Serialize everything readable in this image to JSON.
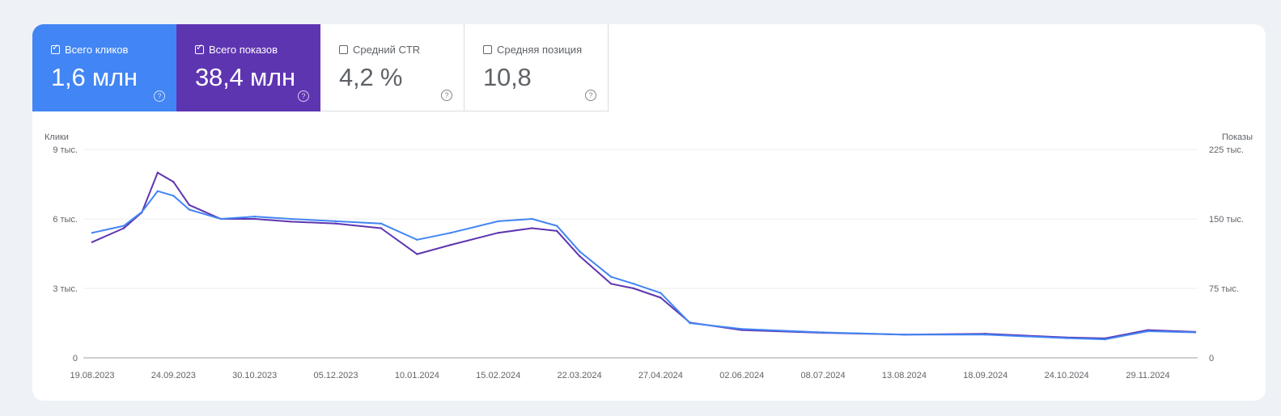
{
  "metrics": [
    {
      "label": "Всего кликов",
      "value": "1,6 млн",
      "checked": true,
      "color": "#4285f4"
    },
    {
      "label": "Всего показов",
      "value": "38,4 млн",
      "checked": true,
      "color": "#5e35b1"
    },
    {
      "label": "Средний CTR",
      "value": "4,2 %",
      "checked": false
    },
    {
      "label": "Средняя позиция",
      "value": "10,8",
      "checked": false
    }
  ],
  "help_glyph": "?",
  "chart_data": {
    "type": "line",
    "ylabel": "Клики",
    "y2label": "Показы",
    "ylim": [
      0,
      9000
    ],
    "y2lim": [
      0,
      225000
    ],
    "yticks": [
      "0",
      "3 тыс.",
      "6 тыс.",
      "9 тыс."
    ],
    "y2ticks": [
      "0",
      "75 тыс.",
      "150 тыс.",
      "225 тыс."
    ],
    "xticks": [
      "19.08.2023",
      "24.09.2023",
      "30.10.2023",
      "05.12.2023",
      "10.01.2024",
      "15.02.2024",
      "22.03.2024",
      "27.04.2024",
      "02.06.2024",
      "08.07.2024",
      "13.08.2024",
      "18.09.2024",
      "24.10.2024",
      "29.11.2024"
    ],
    "x": [
      "19.08.2023",
      "02.09.2023",
      "10.09.2023",
      "17.09.2023",
      "24.09.2023",
      "01.10.2023",
      "15.10.2023",
      "30.10.2023",
      "15.11.2023",
      "05.12.2023",
      "25.12.2023",
      "10.01.2024",
      "25.01.2024",
      "15.02.2024",
      "01.03.2024",
      "12.03.2024",
      "22.03.2024",
      "05.04.2024",
      "15.04.2024",
      "27.04.2024",
      "10.05.2024",
      "02.06.2024",
      "08.07.2024",
      "13.08.2024",
      "18.09.2024",
      "24.10.2024",
      "10.11.2024",
      "29.11.2024",
      "20.12.2024"
    ],
    "grid": true,
    "series": [
      {
        "color": "#4285f4",
        "values": [
          5400,
          5700,
          6300,
          7200,
          7000,
          6400,
          6000,
          6100,
          6000,
          5900,
          5800,
          5100,
          5400,
          5900,
          6000,
          5700,
          4600,
          3500,
          3200,
          2800,
          1500,
          1250,
          1100,
          1000,
          1000,
          850,
          800,
          1150,
          1100
        ]
      },
      {
        "values_y2": [
          125000,
          140000,
          157000,
          200000,
          190000,
          165000,
          150000,
          150000,
          147000,
          145000,
          140000,
          112000,
          122000,
          135000,
          140000,
          137000,
          110000,
          80000,
          75000,
          65000,
          38000,
          30000,
          27000,
          25000,
          26000,
          22000,
          21000,
          30000,
          28000
        ],
        "color": "#5e35b1"
      }
    ]
  }
}
